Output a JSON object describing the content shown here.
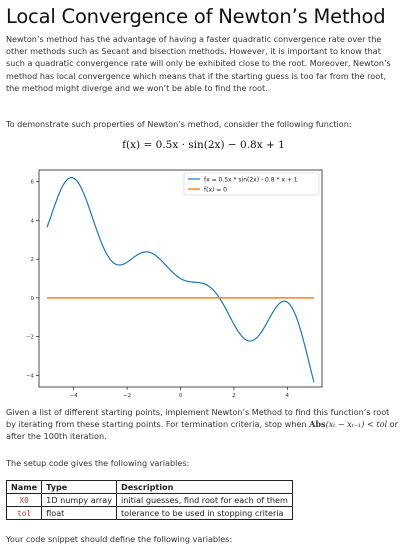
{
  "title": "Local Convergence of Newton’s Method",
  "intro": "Newton’s method has the advantage of having a faster quadratic convergence rate over the other methods such as Secant and bisection methods. However, it is important to know that such a quadratic convergence rate will only be exhibited close to the root. Moreover, Newton’s method has local convergence which means that if the starting guess is too far from the root, the method might diverge and we won’t be able to find the root.",
  "demo_text": "To demonstrate such properties of Newton’s method, consider the following function:",
  "formula": {
    "lhs": "f(x) = 0.5x · sin(2x) − 0.8x + 1"
  },
  "task_text_1": "Given a list of different starting points, implement Newton’s Method to find this function’s root by iterating from these starting points. For termination criteria, stop when ",
  "task_abs": "Abs",
  "task_math": "(xₜ − xₜ₋₁) < tol",
  "task_text_2": " or after the 100th iteration.",
  "setup_text": "The setup code gives the following variables:",
  "table": {
    "headers": [
      "Name",
      "Type",
      "Description"
    ],
    "rows": [
      [
        "X0",
        "1D numpy array",
        "initial guesses, find root for each of them"
      ],
      [
        "tol",
        "float",
        "tolerance to be used in stopping criteria"
      ]
    ]
  },
  "footer_text": "Your code snippet should define the following variables:",
  "chart_data": {
    "type": "line",
    "xlim": [
      -5.3,
      5.3
    ],
    "ylim": [
      -4.6,
      6.6
    ],
    "xticks": [
      -4,
      -2,
      0,
      2,
      4
    ],
    "yticks": [
      -4,
      -2,
      0,
      2,
      4,
      6
    ],
    "grid": false,
    "legend_position": "top-right",
    "series": [
      {
        "name": "fx = 0.5x * sin(2x) - 0.8 * x + 1",
        "color": "#1f77b4",
        "function": "0.5*x*sin(2*x) - 0.8*x + 1",
        "x_range": [
          -5,
          5
        ]
      },
      {
        "name": "f(x) = 0",
        "color": "#ff7f0e",
        "function": "0",
        "x_range": [
          -5,
          5
        ]
      }
    ]
  }
}
